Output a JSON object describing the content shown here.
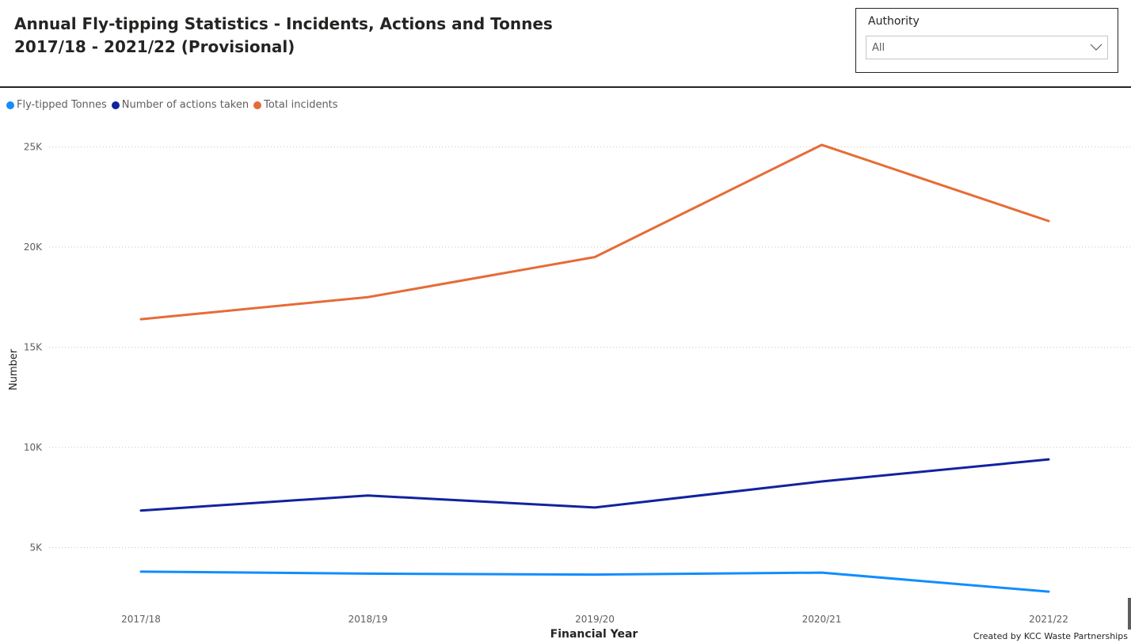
{
  "header": {
    "title_line1": "Annual Fly-tipping Statistics - Incidents, Actions and Tonnes",
    "title_line2": "2017/18 - 2021/22 (Provisional)"
  },
  "slicer": {
    "label": "Authority",
    "selected": "All",
    "icon": "chevron-down-icon"
  },
  "footer": {
    "credit": "Created by KCC Waste Partnerships"
  },
  "chart_data": {
    "type": "line",
    "title": "",
    "xlabel": "Financial Year",
    "ylabel": "Number",
    "categories": [
      "2017/18",
      "2018/19",
      "2019/20",
      "2020/21",
      "2021/22"
    ],
    "ylim": [
      0,
      26000
    ],
    "yticks": [
      5000,
      10000,
      15000,
      20000,
      25000
    ],
    "ytick_labels": [
      "5K",
      "10K",
      "15K",
      "20K",
      "25K"
    ],
    "grid": true,
    "legend_position": "top-left",
    "series": [
      {
        "name": "Fly-tipped Tonnes",
        "color": "#118dff",
        "values": [
          3800,
          3700,
          3650,
          3750,
          2800
        ]
      },
      {
        "name": "Number of actions taken",
        "color": "#12239e",
        "values": [
          6850,
          7600,
          7000,
          8300,
          9400
        ]
      },
      {
        "name": "Total incidents",
        "color": "#e66c37",
        "values": [
          16400,
          17500,
          19500,
          25100,
          21300
        ]
      }
    ]
  }
}
